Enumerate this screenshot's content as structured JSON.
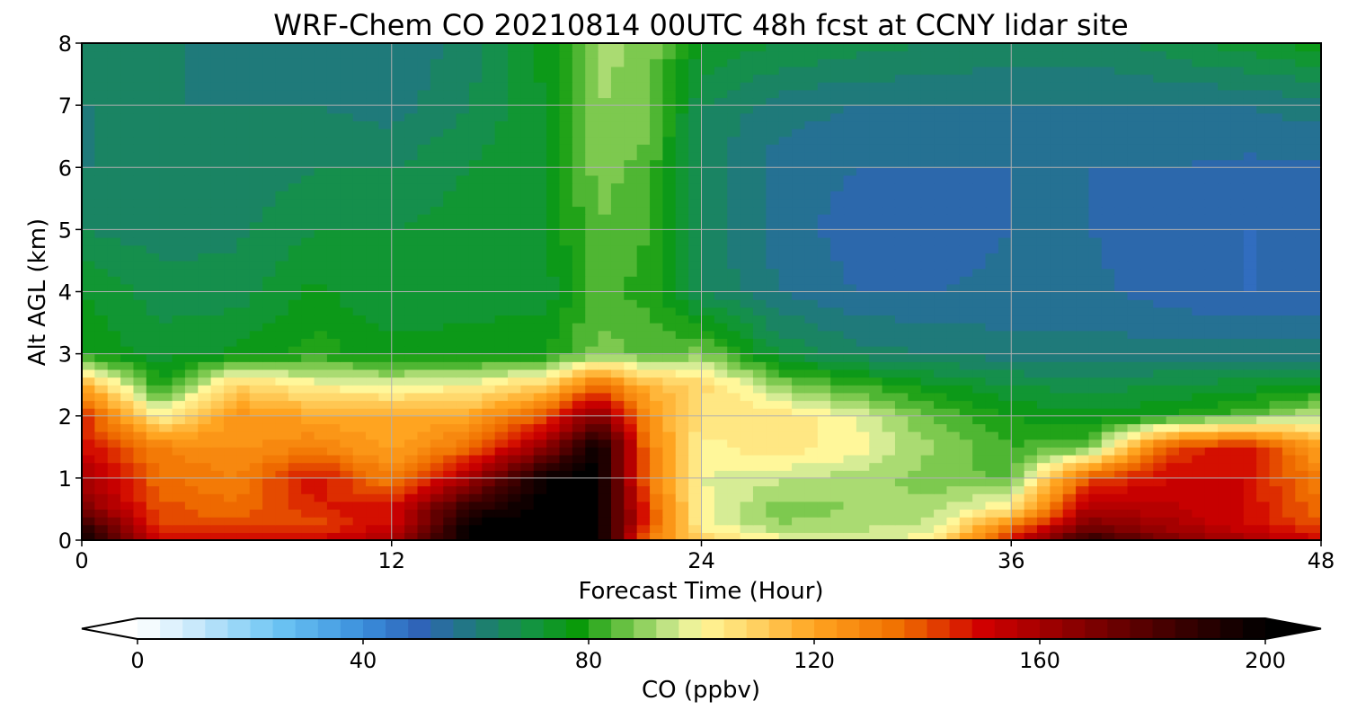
{
  "chart_data": {
    "type": "heatmap",
    "title": "WRF-Chem CO  20210814 00UTC 48h fcst at CCNY lidar site",
    "xlabel": "Forecast Time (Hour)",
    "ylabel": "Alt AGL (km)",
    "xlim": [
      0,
      48
    ],
    "ylim": [
      0,
      8
    ],
    "x_ticks": [
      "0",
      "12",
      "24",
      "36",
      "48"
    ],
    "y_ticks": [
      "0",
      "1",
      "2",
      "3",
      "4",
      "5",
      "6",
      "7",
      "8"
    ],
    "grid": true,
    "z_unit_label": "CO  (ppbv)",
    "colorbar": {
      "range": [
        0,
        200
      ],
      "ticks": [
        "0",
        "40",
        "80",
        "120",
        "160",
        "200"
      ],
      "extend": "both",
      "color_stops": [
        {
          "v": 0,
          "c": "#ffffff"
        },
        {
          "v": 10,
          "c": "#c9e9fb"
        },
        {
          "v": 25,
          "c": "#6cc5f4"
        },
        {
          "v": 40,
          "c": "#3a8fdc"
        },
        {
          "v": 50,
          "c": "#2f64b8"
        },
        {
          "v": 60,
          "c": "#1f7a7a"
        },
        {
          "v": 70,
          "c": "#139440"
        },
        {
          "v": 78,
          "c": "#0a9a0a"
        },
        {
          "v": 88,
          "c": "#7dc94f"
        },
        {
          "v": 96,
          "c": "#d6ec95"
        },
        {
          "v": 100,
          "c": "#fff79a"
        },
        {
          "v": 110,
          "c": "#ffd060"
        },
        {
          "v": 120,
          "c": "#ffa420"
        },
        {
          "v": 135,
          "c": "#f07000"
        },
        {
          "v": 150,
          "c": "#d00000"
        },
        {
          "v": 170,
          "c": "#7a0000"
        },
        {
          "v": 185,
          "c": "#3a0000"
        },
        {
          "v": 200,
          "c": "#000000"
        }
      ]
    },
    "x": [
      0,
      3,
      6,
      9,
      12,
      15,
      18,
      20,
      22,
      24,
      27,
      30,
      33,
      36,
      39,
      42,
      45,
      48
    ],
    "y": [
      0,
      0.25,
      0.5,
      1,
      1.5,
      2,
      2.5,
      3,
      4,
      5,
      6,
      7,
      8
    ],
    "z_rows": [
      [
        200,
        150,
        150,
        150,
        160,
        200,
        200,
        200,
        130,
        110,
        100,
        98,
        100,
        150,
        190,
        170,
        160,
        150
      ],
      [
        190,
        140,
        140,
        140,
        150,
        200,
        200,
        200,
        140,
        100,
        90,
        92,
        95,
        130,
        170,
        160,
        150,
        140
      ],
      [
        170,
        140,
        135,
        145,
        150,
        190,
        200,
        200,
        140,
        100,
        88,
        90,
        92,
        105,
        160,
        155,
        150,
        135
      ],
      [
        160,
        135,
        130,
        150,
        130,
        160,
        200,
        200,
        130,
        98,
        95,
        92,
        88,
        85,
        140,
        150,
        150,
        130
      ],
      [
        150,
        130,
        125,
        130,
        120,
        135,
        165,
        200,
        130,
        100,
        105,
        100,
        90,
        82,
        85,
        140,
        150,
        120
      ],
      [
        145,
        100,
        125,
        120,
        118,
        120,
        140,
        170,
        125,
        105,
        105,
        98,
        85,
        78,
        75,
        78,
        85,
        95
      ],
      [
        120,
        78,
        110,
        100,
        98,
        100,
        110,
        135,
        115,
        108,
        90,
        82,
        75,
        70,
        68,
        70,
        72,
        75
      ],
      [
        78,
        72,
        75,
        80,
        76,
        76,
        78,
        88,
        85,
        88,
        70,
        64,
        62,
        60,
        60,
        60,
        60,
        60
      ],
      [
        74,
        68,
        68,
        75,
        70,
        72,
        72,
        84,
        80,
        66,
        58,
        54,
        54,
        55,
        55,
        52,
        50,
        50
      ],
      [
        66,
        64,
        65,
        70,
        70,
        72,
        74,
        86,
        82,
        64,
        56,
        52,
        52,
        54,
        54,
        52,
        50,
        50
      ],
      [
        62,
        62,
        63,
        66,
        66,
        70,
        74,
        88,
        84,
        64,
        56,
        54,
        54,
        54,
        54,
        54,
        53,
        53
      ],
      [
        62,
        62,
        62,
        62,
        60,
        66,
        74,
        90,
        88,
        66,
        60,
        58,
        58,
        58,
        58,
        58,
        58,
        60
      ],
      [
        63,
        63,
        60,
        60,
        58,
        64,
        76,
        92,
        88,
        74,
        70,
        68,
        66,
        64,
        64,
        68,
        72,
        76
      ]
    ]
  }
}
